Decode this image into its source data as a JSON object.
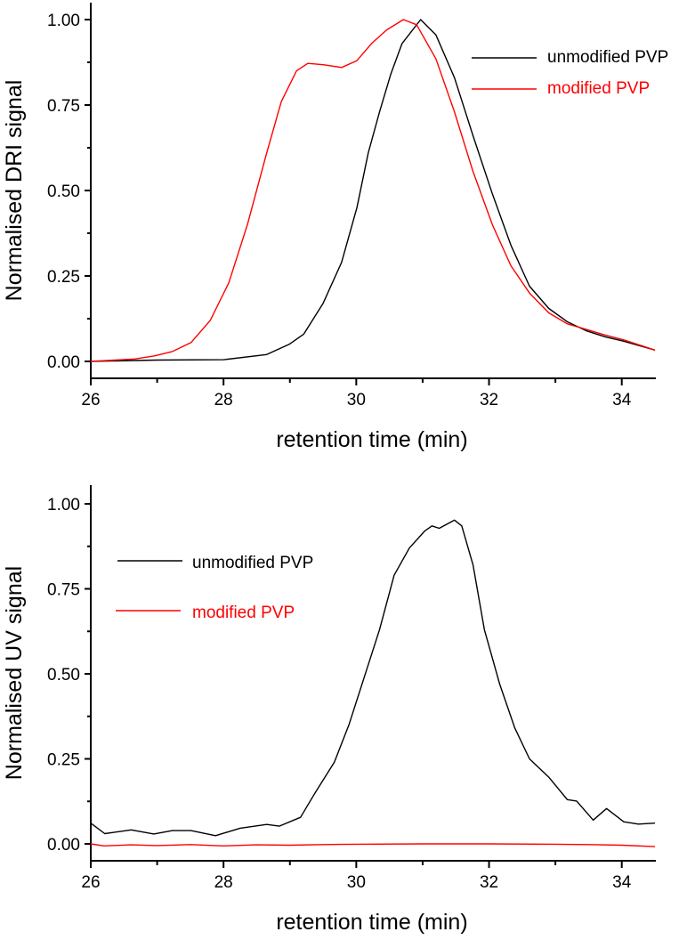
{
  "chart_data": [
    {
      "type": "line",
      "xlabel": "retention time (min)",
      "ylabel": "Normalised DRI signal",
      "xlim": [
        26,
        34.5
      ],
      "ylim": [
        0,
        1
      ],
      "xticks": [
        "26",
        "28",
        "30",
        "32",
        "34"
      ],
      "yticks": [
        "0.00",
        "0.25",
        "0.50",
        "0.75",
        "1.00"
      ],
      "grid": false,
      "legend_position": "top-right",
      "series": [
        {
          "name": "unmodified PVP",
          "color": "#000000",
          "x": [
            26,
            27,
            28,
            28.65,
            28.99,
            29.21,
            29.5,
            29.78,
            30.01,
            30.18,
            30.35,
            30.52,
            30.69,
            30.97,
            31.2,
            31.48,
            31.76,
            32.05,
            32.33,
            32.61,
            32.9,
            33.18,
            33.46,
            33.75,
            34.03,
            34.5
          ],
          "y": [
            0.0,
            0.004,
            0.005,
            0.02,
            0.05,
            0.08,
            0.17,
            0.29,
            0.45,
            0.61,
            0.73,
            0.84,
            0.93,
            1.0,
            0.955,
            0.83,
            0.66,
            0.49,
            0.34,
            0.22,
            0.155,
            0.116,
            0.09,
            0.072,
            0.059,
            0.033
          ]
        },
        {
          "name": "modified PVP",
          "color": "#ff0000",
          "x": [
            26,
            26.66,
            26.95,
            27.23,
            27.51,
            27.8,
            28.08,
            28.36,
            28.65,
            28.87,
            29.1,
            29.27,
            29.5,
            29.78,
            30.01,
            30.23,
            30.46,
            30.71,
            30.91,
            31.2,
            31.48,
            31.76,
            32.05,
            32.33,
            32.61,
            32.9,
            33.18,
            33.46,
            33.75,
            34.03,
            34.5
          ],
          "y": [
            0.0,
            0.007,
            0.016,
            0.029,
            0.055,
            0.12,
            0.23,
            0.4,
            0.61,
            0.76,
            0.85,
            0.872,
            0.868,
            0.86,
            0.88,
            0.93,
            0.97,
            1.0,
            0.985,
            0.885,
            0.73,
            0.555,
            0.4,
            0.28,
            0.2,
            0.142,
            0.11,
            0.094,
            0.077,
            0.063,
            0.033
          ]
        }
      ]
    },
    {
      "type": "line",
      "xlabel": "retention time (min)",
      "ylabel": "Normalised UV signal",
      "xlim": [
        26,
        34.5
      ],
      "ylim": [
        0,
        1
      ],
      "xticks": [
        "26",
        "28",
        "30",
        "32",
        "34"
      ],
      "yticks": [
        "0.00",
        "0.25",
        "0.50",
        "0.75",
        "1.00"
      ],
      "grid": false,
      "legend_position": "top-left",
      "series": [
        {
          "name": "unmodified PVP",
          "color": "#000000",
          "x": [
            26,
            26.21,
            26.61,
            26.95,
            27.23,
            27.51,
            27.88,
            28.25,
            28.65,
            28.84,
            29.16,
            29.38,
            29.67,
            29.89,
            30.12,
            30.35,
            30.57,
            30.8,
            31.03,
            31.14,
            31.25,
            31.48,
            31.59,
            31.76,
            31.93,
            32.16,
            32.39,
            32.61,
            32.9,
            33.18,
            33.32,
            33.57,
            33.77,
            34.03,
            34.25,
            34.5
          ],
          "y": [
            0.061,
            0.03,
            0.041,
            0.029,
            0.039,
            0.039,
            0.024,
            0.046,
            0.057,
            0.052,
            0.078,
            0.15,
            0.24,
            0.35,
            0.49,
            0.63,
            0.79,
            0.87,
            0.92,
            0.935,
            0.928,
            0.952,
            0.935,
            0.82,
            0.63,
            0.47,
            0.34,
            0.25,
            0.196,
            0.13,
            0.126,
            0.07,
            0.104,
            0.065,
            0.058,
            0.061
          ]
        },
        {
          "name": "modified PVP",
          "color": "#ff0000",
          "x": [
            26,
            26.2,
            26.6,
            27,
            27.5,
            28,
            28.5,
            29,
            29.5,
            30,
            31,
            32,
            33,
            33.5,
            34,
            34.5
          ],
          "y": [
            0.0,
            -0.006,
            -0.003,
            -0.005,
            -0.002,
            -0.006,
            -0.003,
            -0.004,
            -0.002,
            -0.001,
            0.0,
            0.0,
            -0.001,
            -0.002,
            -0.004,
            -0.008
          ]
        }
      ]
    }
  ]
}
